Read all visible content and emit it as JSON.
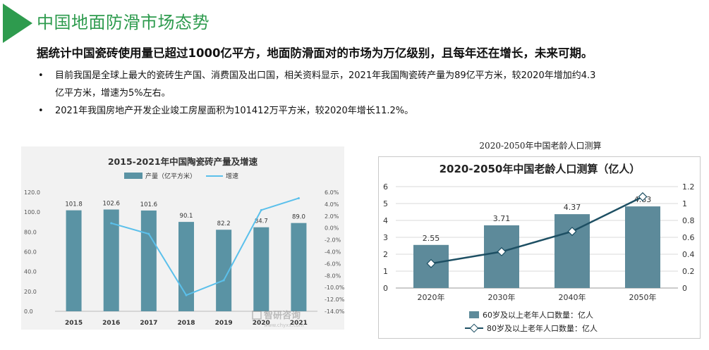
{
  "header": {
    "title": "中国地面防滑市场态势",
    "headline": "据统计中国瓷砖使用量已超过1000亿平方，地面防滑面对的市场为万亿级别，且每年还在增长，未来可期。"
  },
  "bullets": [
    {
      "marker": "•",
      "lines": [
        "目前我国是全球上最大的瓷砖生产国、消费国及出口国，相关资料显示，2021年我国陶瓷砖产量为89亿平方米，较2020年增加约4.3",
        "亿平方米，增速为5%左右。"
      ]
    },
    {
      "marker": "•",
      "lines": [
        "2021年我国房地产开发企业竣工房屋面积为101412万平方米，较2020年增长11.2%。"
      ]
    }
  ],
  "colors": {
    "title_green": "#2e9b4e",
    "bar1": "#5a93a4",
    "line1": "#5bc0eb",
    "bar2": "#5d8a9a",
    "line2": "#1d4f63"
  },
  "chart_data": [
    {
      "type": "bar",
      "title": "2015-2021年中国陶瓷砖产量及增速",
      "categories": [
        "2015",
        "2016",
        "2017",
        "2018",
        "2019",
        "2020",
        "2021"
      ],
      "series": [
        {
          "name": "产量（亿平方米）",
          "type": "bar",
          "axis": "left",
          "values": [
            101.8,
            102.6,
            101.6,
            90.1,
            82.2,
            84.7,
            89.0
          ],
          "labels": [
            "101.8",
            "102.6",
            "101.6",
            "90.1",
            "82.2",
            "84.7",
            "89.0"
          ]
        },
        {
          "name": "增速",
          "type": "line",
          "axis": "right",
          "values": [
            null,
            0.8,
            -1.0,
            -11.3,
            -8.8,
            3.0,
            5.0
          ]
        }
      ],
      "ylim_left": [
        0,
        120
      ],
      "yticks_left": [
        "0.0",
        "20.0",
        "40.0",
        "60.0",
        "80.0",
        "100.0",
        "120.0"
      ],
      "ylim_right": [
        -14,
        6
      ],
      "yticks_right": [
        "-14.0%",
        "-12.0%",
        "-10.0%",
        "-8.0%",
        "-6.0%",
        "-4.0%",
        "-2.0%",
        "0.0%",
        "2.0%",
        "4.0%",
        "6.0%"
      ],
      "legend": "top",
      "watermark": {
        "name": "智研咨询",
        "url": "www.chyxx.com"
      }
    },
    {
      "type": "bar",
      "caption": "2020-2050年中国老龄人口测算",
      "title": "2020-2050年中国老龄人口测算（亿人）",
      "categories": [
        "2020年",
        "2030年",
        "2040年",
        "2050年"
      ],
      "series": [
        {
          "name": "60岁及以上老年人口数量：亿人",
          "type": "bar",
          "axis": "left",
          "values": [
            2.55,
            3.71,
            4.37,
            4.83
          ],
          "labels": [
            "2.55",
            "3.71",
            "4.37",
            "4.83"
          ]
        },
        {
          "name": "80岁及以上老年人口数量：亿人",
          "type": "line",
          "axis": "right",
          "values": [
            0.29,
            0.43,
            0.67,
            1.08
          ]
        }
      ],
      "ylim_left": [
        0,
        6
      ],
      "yticks_left": [
        "0",
        "1",
        "2",
        "3",
        "4",
        "5",
        "6"
      ],
      "ylim_right": [
        0,
        1.2
      ],
      "yticks_right": [
        "0",
        "0.2",
        "0.4",
        "0.6",
        "0.8",
        "1",
        "1.2"
      ],
      "legend": "bottom"
    }
  ]
}
